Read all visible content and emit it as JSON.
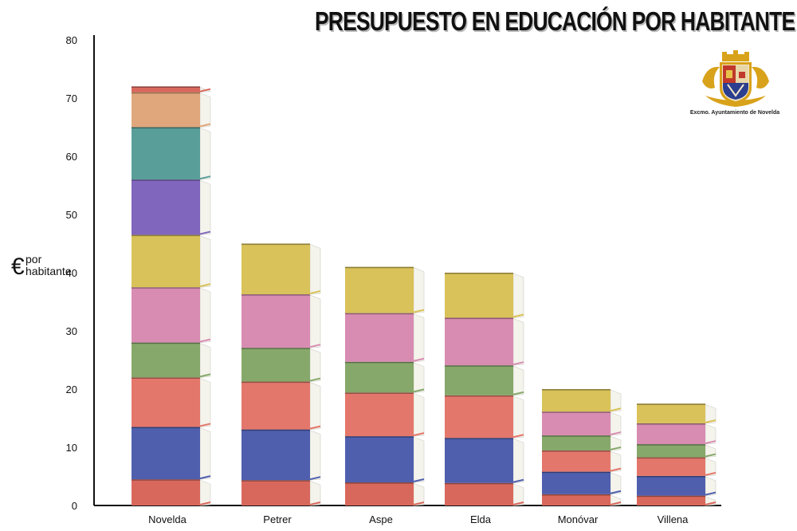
{
  "chart_data": {
    "type": "bar",
    "title": "PRESUPUESTO EN EDUCACIÓN POR HABITANTE",
    "ylabel_symbol": "€",
    "ylabel_line1": "por",
    "ylabel_line2": "habitante",
    "ylim": [
      0,
      80
    ],
    "yticks": [
      0,
      10,
      20,
      30,
      40,
      50,
      60,
      70,
      80
    ],
    "categories": [
      "Novelda",
      "Petrer",
      "Aspe",
      "Elda",
      "Monóvar",
      "Villena"
    ],
    "values": [
      72,
      45,
      41,
      40,
      20,
      17.5
    ],
    "grid": false,
    "style": "stacked books"
  },
  "logo": {
    "caption": "Excmo. Ayuntamiento de Novelda",
    "icon": "coat-of-arms-icon"
  },
  "colors": {
    "book_palette": [
      "#d9685c",
      "#4f5fae",
      "#e4776b",
      "#86a86a",
      "#d88cb2",
      "#d9c259",
      "#8066bd",
      "#5a9e9a",
      "#e0a77c"
    ],
    "page_edge": "#f4f3ec",
    "axis": "#111111"
  }
}
